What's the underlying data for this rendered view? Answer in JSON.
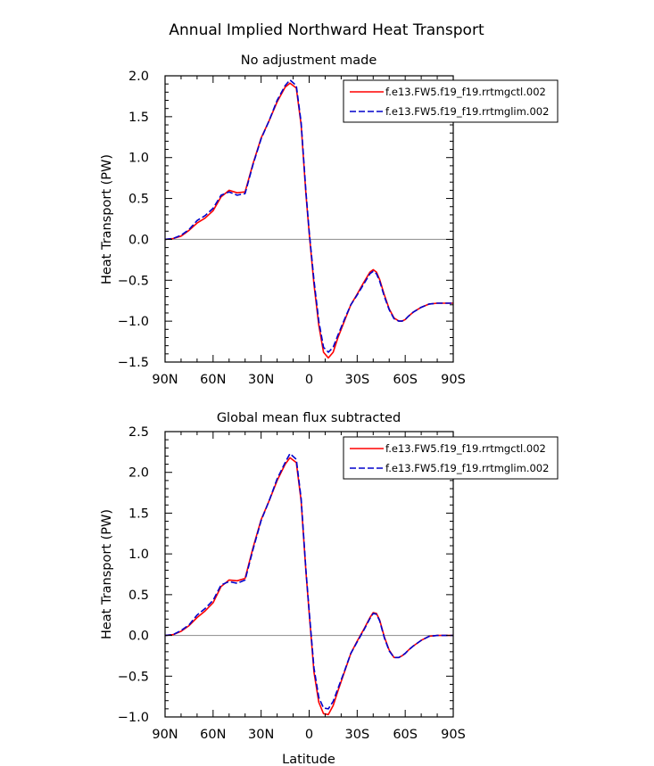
{
  "figure_title": "Annual Implied Northward Heat Transport",
  "xlabel": "Latitude",
  "colors": {
    "ctl": "#ff0000",
    "lim": "#0000cc",
    "zero_line": "#999999"
  },
  "chart_data": [
    {
      "type": "line",
      "title": "No adjustment made",
      "xlabel": "",
      "ylabel": "Heat Transport (PW)",
      "xlim": [
        90,
        -90
      ],
      "x_ticks": [
        {
          "value": 90,
          "label": "90N"
        },
        {
          "value": 60,
          "label": "60N"
        },
        {
          "value": 30,
          "label": "30N"
        },
        {
          "value": 0,
          "label": "0"
        },
        {
          "value": -30,
          "label": "30S"
        },
        {
          "value": -60,
          "label": "60S"
        },
        {
          "value": -90,
          "label": "90S"
        }
      ],
      "ylim": [
        -1.5,
        2.0
      ],
      "y_ticks": [
        -1.5,
        -1.0,
        -0.5,
        0.0,
        0.5,
        1.0,
        1.5,
        2.0
      ],
      "y_tick_labels": [
        "−1.5",
        "−1.0",
        "−0.5",
        "0.0",
        "0.5",
        "1.0",
        "1.5",
        "2.0"
      ],
      "legend_position": "top-right",
      "x": [
        90,
        85,
        80,
        75,
        70,
        65,
        60,
        55,
        50,
        45,
        40,
        35,
        30,
        25,
        20,
        15,
        12,
        8,
        5,
        2,
        0,
        -3,
        -6,
        -9,
        -12,
        -15,
        -18,
        -22,
        -26,
        -30,
        -34,
        -38,
        -40,
        -42,
        -44,
        -47,
        -50,
        -53,
        -56,
        -58,
        -60,
        -62,
        -65,
        -70,
        -75,
        -80,
        -85,
        -90
      ],
      "series": [
        {
          "name": "f.e13.FW5.f19_f19.rrtmgctl.002",
          "color": "#ff0000",
          "dash": "solid",
          "values": [
            0.0,
            0.01,
            0.04,
            0.11,
            0.2,
            0.26,
            0.35,
            0.52,
            0.6,
            0.57,
            0.58,
            0.93,
            1.24,
            1.45,
            1.68,
            1.86,
            1.91,
            1.85,
            1.4,
            0.55,
            0.08,
            -0.55,
            -1.05,
            -1.38,
            -1.45,
            -1.38,
            -1.2,
            -1.0,
            -0.8,
            -0.67,
            -0.53,
            -0.4,
            -0.37,
            -0.4,
            -0.49,
            -0.68,
            -0.85,
            -0.96,
            -1.0,
            -1.0,
            -0.98,
            -0.94,
            -0.89,
            -0.83,
            -0.79,
            -0.78,
            -0.78,
            -0.78
          ]
        },
        {
          "name": "f.e13.FW5.f19_f19.rrtmglim.002",
          "color": "#0000cc",
          "dash": "dashed",
          "values": [
            0.0,
            0.01,
            0.05,
            0.12,
            0.23,
            0.29,
            0.38,
            0.54,
            0.58,
            0.54,
            0.56,
            0.92,
            1.23,
            1.45,
            1.7,
            1.88,
            1.95,
            1.88,
            1.43,
            0.58,
            0.1,
            -0.5,
            -1.0,
            -1.32,
            -1.38,
            -1.32,
            -1.17,
            -0.98,
            -0.8,
            -0.68,
            -0.55,
            -0.42,
            -0.39,
            -0.42,
            -0.51,
            -0.7,
            -0.86,
            -0.97,
            -1.0,
            -1.0,
            -0.98,
            -0.94,
            -0.89,
            -0.83,
            -0.79,
            -0.78,
            -0.78,
            -0.78
          ]
        }
      ]
    },
    {
      "type": "line",
      "title": "Global mean flux subtracted",
      "xlabel": "Latitude",
      "ylabel": "Heat Transport (PW)",
      "xlim": [
        90,
        -90
      ],
      "x_ticks": [
        {
          "value": 90,
          "label": "90N"
        },
        {
          "value": 60,
          "label": "60N"
        },
        {
          "value": 30,
          "label": "30N"
        },
        {
          "value": 0,
          "label": "0"
        },
        {
          "value": -30,
          "label": "30S"
        },
        {
          "value": -60,
          "label": "60S"
        },
        {
          "value": -90,
          "label": "90S"
        }
      ],
      "ylim": [
        -1.0,
        2.5
      ],
      "y_ticks": [
        -1.0,
        -0.5,
        0.0,
        0.5,
        1.0,
        1.5,
        2.0,
        2.5
      ],
      "y_tick_labels": [
        "−1.0",
        "−0.5",
        "0.0",
        "0.5",
        "1.0",
        "1.5",
        "2.0",
        "2.5"
      ],
      "legend_position": "top-right",
      "x": [
        90,
        85,
        80,
        75,
        70,
        65,
        60,
        55,
        50,
        45,
        40,
        35,
        30,
        25,
        20,
        15,
        12,
        8,
        5,
        2,
        0,
        -3,
        -6,
        -9,
        -12,
        -15,
        -18,
        -22,
        -26,
        -30,
        -34,
        -38,
        -40,
        -42,
        -44,
        -47,
        -50,
        -53,
        -56,
        -58,
        -60,
        -62,
        -65,
        -70,
        -75,
        -80,
        -85,
        -90
      ],
      "series": [
        {
          "name": "f.e13.FW5.f19_f19.rrtmgctl.002",
          "color": "#ff0000",
          "dash": "solid",
          "values": [
            0.0,
            0.01,
            0.05,
            0.12,
            0.22,
            0.3,
            0.4,
            0.6,
            0.68,
            0.67,
            0.7,
            1.08,
            1.42,
            1.65,
            1.9,
            2.1,
            2.18,
            2.12,
            1.65,
            0.78,
            0.28,
            -0.45,
            -0.82,
            -0.96,
            -0.97,
            -0.86,
            -0.68,
            -0.45,
            -0.22,
            -0.07,
            0.07,
            0.22,
            0.28,
            0.27,
            0.19,
            -0.02,
            -0.18,
            -0.27,
            -0.27,
            -0.25,
            -0.22,
            -0.18,
            -0.13,
            -0.06,
            -0.01,
            0.0,
            0.0,
            0.0
          ]
        },
        {
          "name": "f.e13.FW5.f19_f19.rrtmglim.002",
          "color": "#0000cc",
          "dash": "dashed",
          "values": [
            0.0,
            0.01,
            0.06,
            0.13,
            0.25,
            0.33,
            0.43,
            0.62,
            0.66,
            0.64,
            0.68,
            1.06,
            1.41,
            1.65,
            1.92,
            2.12,
            2.23,
            2.16,
            1.68,
            0.8,
            0.3,
            -0.4,
            -0.76,
            -0.89,
            -0.9,
            -0.81,
            -0.65,
            -0.44,
            -0.22,
            -0.08,
            0.06,
            0.21,
            0.27,
            0.26,
            0.18,
            -0.03,
            -0.19,
            -0.27,
            -0.27,
            -0.25,
            -0.22,
            -0.18,
            -0.13,
            -0.06,
            -0.01,
            0.0,
            0.0,
            0.0
          ]
        }
      ]
    }
  ]
}
